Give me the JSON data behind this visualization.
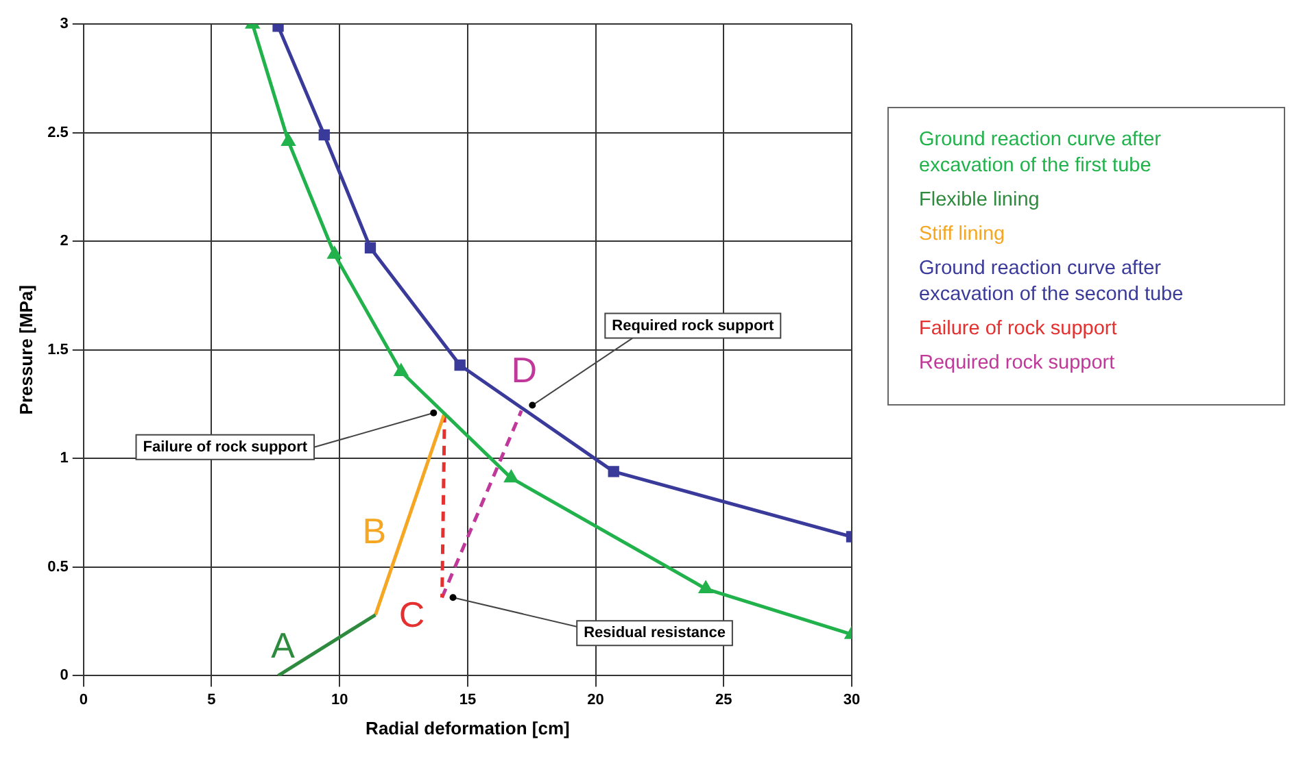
{
  "chart_data": {
    "type": "line",
    "xlabel": "Radial deformation [cm]",
    "ylabel": "Pressure [MPa]",
    "xlim": [
      0,
      30
    ],
    "xticks": [
      0,
      5,
      10,
      15,
      20,
      25,
      30
    ],
    "ylim": [
      0,
      3
    ],
    "yticks": [
      0,
      0.5,
      1,
      1.5,
      2,
      2.5,
      3
    ],
    "grid": true,
    "legend": "right",
    "line_style": "solid",
    "series": [
      {
        "name": "Ground reaction curve after excavation of the first tube",
        "color": "#22b24c",
        "x": [
          6.6,
          8.0,
          9.8,
          12.4,
          16.7,
          24.3,
          30
        ],
        "values": [
          3,
          2.46,
          1.94,
          1.4,
          0.91,
          0.4,
          0.19
        ],
        "marker": "triangle"
      },
      {
        "name": "Flexible lining",
        "color": "#2e8b3e",
        "x": [
          7.6,
          11.4
        ],
        "values": [
          0,
          0.28
        ],
        "marker": "none"
      },
      {
        "name": "Stiff lining",
        "color": "#f5a623",
        "x": [
          11.4,
          14.1
        ],
        "values": [
          0.28,
          1.21
        ],
        "marker": "none"
      },
      {
        "name": "Ground reaction curve after excavation of the second tube",
        "color": "#3a3a9a",
        "x": [
          7.6,
          9.4,
          11.2,
          14.7,
          20.7,
          30
        ],
        "values": [
          2.99,
          2.49,
          1.97,
          1.43,
          0.94,
          0.64
        ],
        "marker": "square"
      },
      {
        "name": "Failure of rock support",
        "color": "#e53030",
        "x": [
          14.1,
          14.0
        ],
        "values": [
          1.21,
          0.36
        ],
        "marker": "none",
        "line_style": "dashed"
      },
      {
        "name": "Required rock support",
        "color": "#c0399a",
        "x": [
          14.0,
          17.1
        ],
        "values": [
          0.36,
          1.22
        ],
        "marker": "none",
        "line_style": "dashed"
      }
    ],
    "annotations": [
      "A",
      "B",
      "C",
      "D",
      {
        "text": "Failure of rock support",
        "x": 14.1,
        "y": 1.21
      },
      {
        "text": "Required rock support",
        "x": 17.1,
        "y": 1.22
      },
      {
        "text": "Residual resistance",
        "x": 14.0,
        "y": 0.36
      }
    ]
  }
}
